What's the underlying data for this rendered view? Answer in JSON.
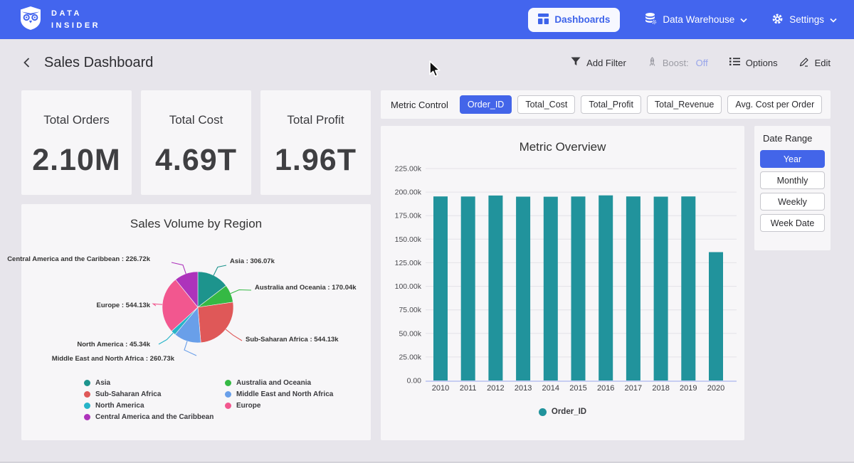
{
  "nav": {
    "brand_line1": "DATA",
    "brand_line2": "INSIDER",
    "dashboards_label": "Dashboards",
    "data_warehouse_label": "Data Warehouse",
    "settings_label": "Settings"
  },
  "header": {
    "title": "Sales Dashboard",
    "add_filter_label": "Add Filter",
    "boost_label": "Boost:",
    "boost_value": "Off",
    "options_label": "Options",
    "edit_label": "Edit"
  },
  "kpis": [
    {
      "label": "Total Orders",
      "value": "2.10M"
    },
    {
      "label": "Total Cost",
      "value": "4.69T"
    },
    {
      "label": "Total Profit",
      "value": "1.96T"
    }
  ],
  "metric_control": {
    "label": "Metric Control",
    "options": [
      "Order_ID",
      "Total_Cost",
      "Total_Profit",
      "Total_Revenue",
      "Avg. Cost per Order"
    ],
    "selected": "Order_ID"
  },
  "date_range": {
    "label": "Date Range",
    "options": [
      "Year",
      "Monthly",
      "Weekly",
      "Week Date"
    ],
    "selected": "Year"
  },
  "colors": {
    "accent": "#4365ee",
    "bar": "#21939c"
  },
  "chart_data": [
    {
      "type": "pie",
      "title": "Sales Volume by Region",
      "labels": [
        "Asia",
        "Australia and Oceania",
        "Sub-Saharan Africa",
        "Middle East and North Africa",
        "North America",
        "Europe",
        "Central America and the Caribbean"
      ],
      "values_k": [
        306.07,
        170.04,
        544.13,
        260.73,
        45.34,
        544.13,
        226.72
      ],
      "unit": "k",
      "colors": [
        "#1d948d",
        "#35b944",
        "#df5858",
        "#699fe9",
        "#27b4c8",
        "#f2578f",
        "#ad33bb"
      ],
      "legend_position": "bottom"
    },
    {
      "type": "bar",
      "title": "Metric Overview",
      "categories": [
        "2010",
        "2011",
        "2012",
        "2013",
        "2014",
        "2015",
        "2016",
        "2017",
        "2018",
        "2019",
        "2020"
      ],
      "series": [
        {
          "name": "Order_ID",
          "values": [
            195400,
            195300,
            196400,
            195200,
            195100,
            195300,
            196500,
            195400,
            195200,
            195400,
            136300
          ],
          "color": "#21939c"
        }
      ],
      "ylim": [
        0,
        225000
      ],
      "ytick_step": 25000,
      "ytick_labels": [
        "0.00",
        "25.00k",
        "50.00k",
        "75.00k",
        "100.00k",
        "125.00k",
        "150.00k",
        "175.00k",
        "200.00k",
        "225.00k"
      ],
      "grid": true,
      "legend_position": "bottom"
    }
  ]
}
